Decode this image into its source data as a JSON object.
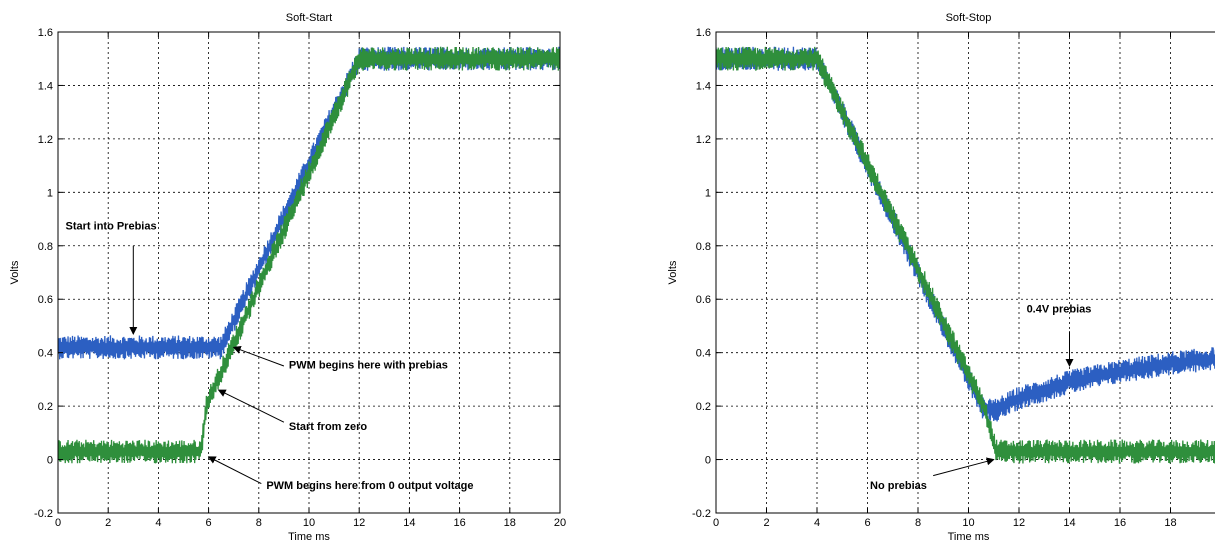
{
  "chart_data": [
    {
      "type": "line",
      "title": "Soft-Start",
      "xlabel": "Time ms",
      "ylabel": "Volts",
      "xlim": [
        0,
        20
      ],
      "ylim": [
        -0.2,
        1.6
      ],
      "xticks": [
        "0",
        "2",
        "4",
        "6",
        "8",
        "10",
        "12",
        "14",
        "16",
        "18",
        "20"
      ],
      "yticks": [
        "-0.2",
        "0",
        "0.2",
        "0.4",
        "0.6",
        "0.8",
        "1",
        "1.2",
        "1.4",
        "1.6"
      ],
      "grid": true,
      "series": [
        {
          "color": "#2c5fc2",
          "noise": 0.03,
          "x": [
            0,
            6.5,
            12,
            20
          ],
          "y": [
            0.42,
            0.42,
            1.5,
            1.5
          ]
        },
        {
          "color": "#2f8f3c",
          "noise": 0.03,
          "x": [
            0,
            5.7,
            5.9,
            12,
            20
          ],
          "y": [
            0.03,
            0.03,
            0.2,
            1.5,
            1.5
          ]
        }
      ],
      "annotations": [
        {
          "text": "Start into Prebias",
          "tx": 0.3,
          "ty": 0.86,
          "ax1": 3.0,
          "ay1": 0.8,
          "ax2": 3.0,
          "ay2": 0.47
        },
        {
          "text": "PWM begins here with prebias",
          "tx": 9.2,
          "ty": 0.34,
          "ax1": 9.0,
          "ay1": 0.35,
          "ax2": 7.0,
          "ay2": 0.42
        },
        {
          "text": "Start from zero",
          "tx": 9.2,
          "ty": 0.11,
          "ax1": 9.0,
          "ay1": 0.14,
          "ax2": 6.4,
          "ay2": 0.26
        },
        {
          "text": "PWM begins here from 0 output voltage",
          "tx": 8.3,
          "ty": -0.11,
          "ax1": 8.1,
          "ay1": -0.09,
          "ax2": 6.0,
          "ay2": 0.01
        }
      ]
    },
    {
      "type": "line",
      "title": "Soft-Stop",
      "xlabel": "Time ms",
      "ylabel": "Volts",
      "xlim": [
        0,
        20
      ],
      "ylim": [
        -0.2,
        1.6
      ],
      "xticks": [
        "0",
        "2",
        "4",
        "6",
        "8",
        "10",
        "12",
        "14",
        "16",
        "18",
        "20"
      ],
      "yticks": [
        "-0.2",
        "0",
        "0.2",
        "0.4",
        "0.6",
        "0.8",
        "1",
        "1.2",
        "1.4",
        "1.6"
      ],
      "grid": true,
      "series": [
        {
          "color": "#2c5fc2",
          "noise": 0.03,
          "x": [
            0,
            4,
            10.5,
            11,
            12,
            14,
            16,
            18,
            20
          ],
          "y": [
            1.5,
            1.5,
            0.2,
            0.18,
            0.23,
            0.29,
            0.33,
            0.36,
            0.38
          ]
        },
        {
          "color": "#2f8f3c",
          "noise": 0.03,
          "x": [
            0,
            4,
            10.6,
            11.1,
            20
          ],
          "y": [
            1.5,
            1.5,
            0.2,
            0.03,
            0.03
          ]
        }
      ],
      "annotations": [
        {
          "text": "0.4V prebias",
          "tx": 12.3,
          "ty": 0.55,
          "ax1": 14.0,
          "ay1": 0.48,
          "ax2": 14.0,
          "ay2": 0.35
        },
        {
          "text": "No prebias",
          "tx": 6.1,
          "ty": -0.11,
          "ax1": 8.6,
          "ay1": -0.06,
          "ax2": 11.0,
          "ay2": 0.0
        }
      ]
    }
  ]
}
